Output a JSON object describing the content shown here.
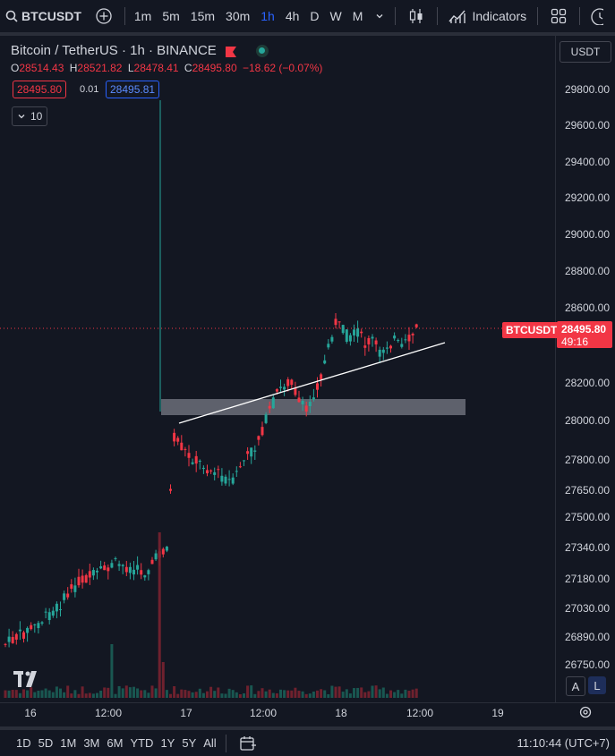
{
  "toolbar": {
    "symbol": "BTCUSDT",
    "intervals": [
      "1m",
      "5m",
      "15m",
      "30m",
      "1h",
      "4h",
      "D",
      "W",
      "M"
    ],
    "active_interval": "1h",
    "indicators_label": "Indicators"
  },
  "legend": {
    "title": "Bitcoin / TetherUS · 1h · BINANCE",
    "ohlc": {
      "o_label": "O",
      "o": "28514.43",
      "h_label": "H",
      "h": "28521.82",
      "l_label": "L",
      "l": "28478.41",
      "c_label": "C",
      "c": "28495.80",
      "change": "−18.62 (−0.07%)"
    },
    "sell_price": "28495.80",
    "spread": "0.01",
    "buy_price": "28495.81",
    "volume_toggle": "10"
  },
  "currency_selector": "USDT",
  "price_axis": [
    "29800.00",
    "29600.00",
    "29400.00",
    "29200.00",
    "29000.00",
    "28800.00",
    "28600.00",
    "28200.00",
    "28000.00",
    "27800.00",
    "27650.00",
    "27500.00",
    "27340.00",
    "27180.00",
    "27030.00",
    "26890.00",
    "26750.00"
  ],
  "current_price": {
    "symbol_badge": "BTCUSDT",
    "price": "28495.80",
    "countdown": "49:16"
  },
  "time_axis": [
    "16",
    "12:00",
    "17",
    "12:00",
    "18",
    "12:00",
    "19"
  ],
  "scale_buttons": {
    "auto": "A",
    "log": "L"
  },
  "bottom_bar": {
    "ranges": [
      "1D",
      "5D",
      "1M",
      "3M",
      "6M",
      "YTD",
      "1Y",
      "5Y",
      "All"
    ],
    "clock": "11:10:44 (UTC+7)"
  },
  "colors": {
    "up": "#26a69a",
    "down": "#f23645",
    "background": "#131722",
    "accent": "#2962ff"
  }
}
